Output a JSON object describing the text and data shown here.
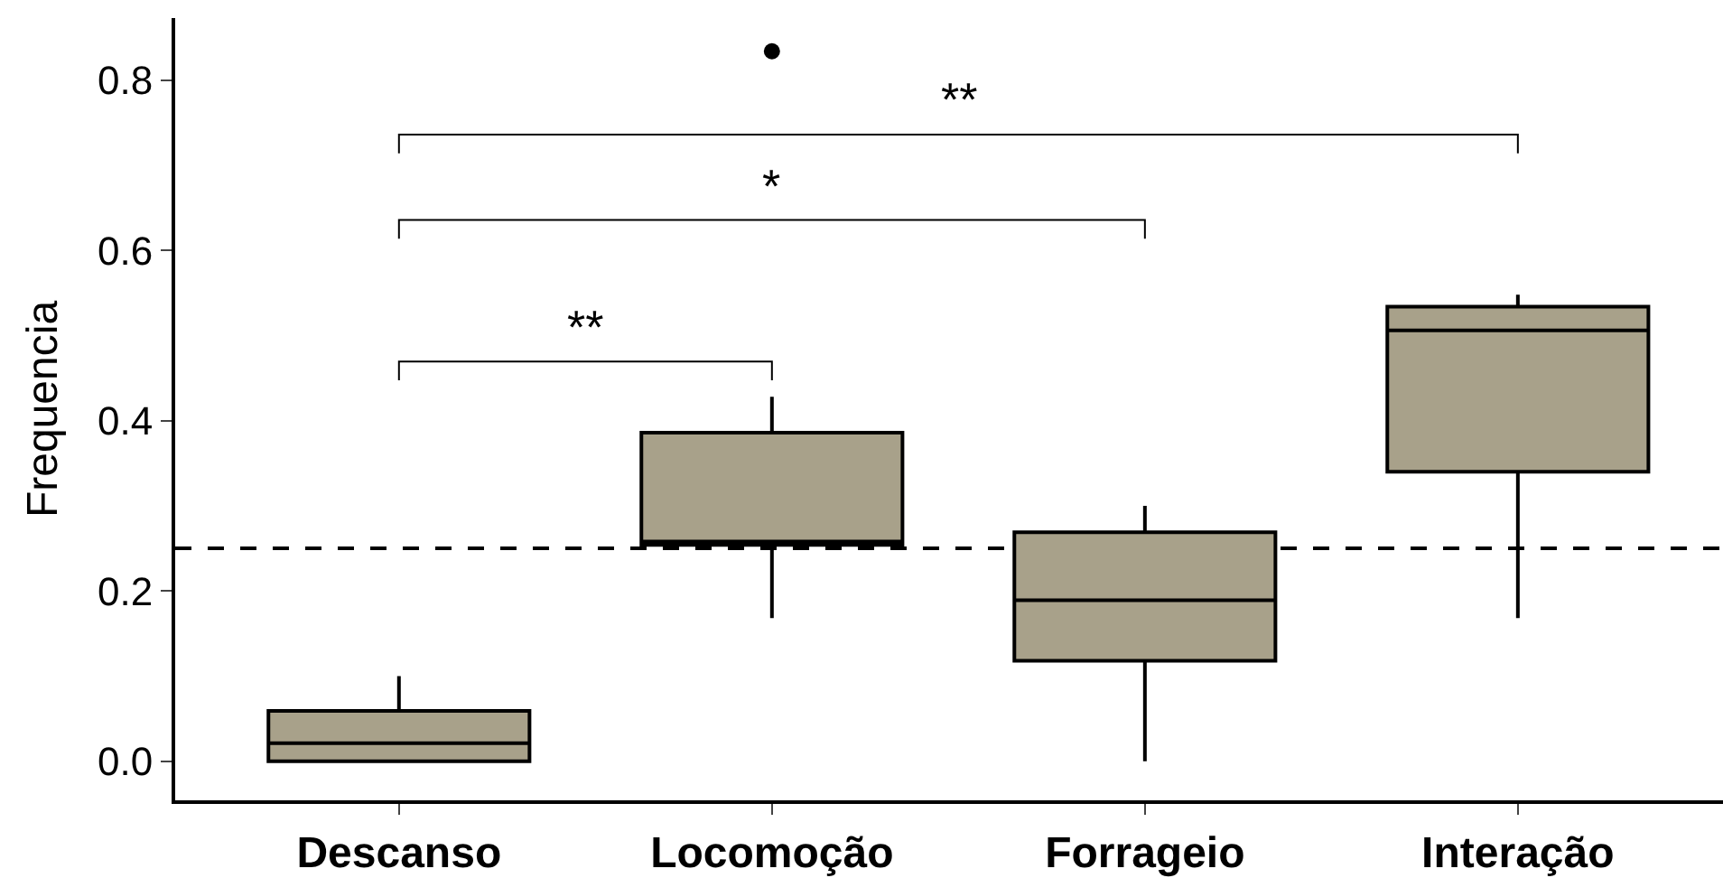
{
  "chart_data": {
    "type": "box",
    "ylabel": "Frequencia",
    "categories": [
      "Descanso",
      "Locomoção",
      "Forrageio",
      "Interação"
    ],
    "series": [
      {
        "color": "#a8a18a",
        "boxes": [
          {
            "low": 0,
            "q1": 0,
            "median": 0.021,
            "q3": 0.059,
            "high": 0.1
          },
          {
            "low": 0.168,
            "q1": 0.254,
            "median": 0.258,
            "q3": 0.386,
            "high": 0.428,
            "outliers": [
              0.834
            ]
          },
          {
            "low": 0,
            "q1": 0.118,
            "median": 0.189,
            "q3": 0.269,
            "high": 0.3
          },
          {
            "low": 0.168,
            "q1": 0.34,
            "median": 0.506,
            "q3": 0.534,
            "high": 0.548
          }
        ]
      }
    ],
    "ylim": [
      -0.046,
      0.873
    ],
    "yticks": [
      {
        "value": 0,
        "label": "0.0"
      },
      {
        "value": 0.2,
        "label": "0.2"
      },
      {
        "value": 0.4,
        "label": "0.4"
      },
      {
        "value": 0.6,
        "label": "0.6"
      },
      {
        "value": 0.8,
        "label": "0.8"
      }
    ],
    "ref_lines": [
      {
        "axis": "y",
        "value": 0.25,
        "line_style": "dashed",
        "color": "#000000"
      }
    ],
    "annotations": [
      "**",
      "*",
      "**"
    ]
  }
}
